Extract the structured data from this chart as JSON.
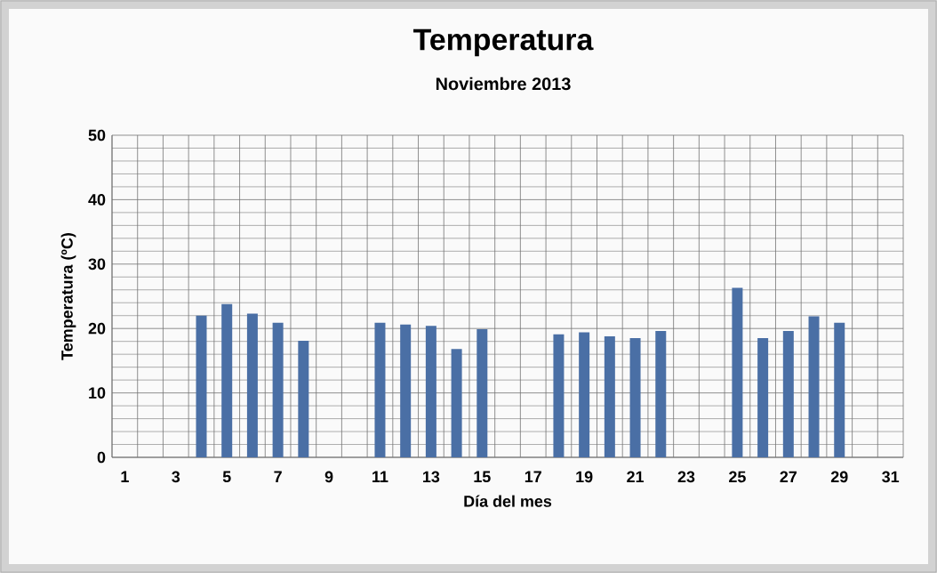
{
  "chart_data": {
    "type": "bar",
    "title": "Temperatura",
    "subtitle": "Noviembre 2013",
    "xlabel": "Día del mes",
    "ylabel": "Temperatura (ºC)",
    "categories": [
      "1",
      null,
      "3",
      null,
      "5",
      null,
      "7",
      null,
      "9",
      null,
      "11",
      null,
      "13",
      null,
      "15",
      null,
      "17",
      null,
      "19",
      null,
      "21",
      null,
      "23",
      null,
      "25",
      null,
      "27",
      null,
      "29",
      null,
      "31"
    ],
    "values": [
      null,
      null,
      null,
      22.0,
      23.8,
      22.3,
      20.9,
      18.1,
      null,
      null,
      20.9,
      20.6,
      20.4,
      16.8,
      19.9,
      null,
      null,
      19.1,
      19.4,
      18.8,
      18.5,
      19.6,
      null,
      null,
      26.3,
      18.5,
      19.6,
      21.9,
      20.9,
      null,
      null
    ],
    "color": "#4a6fa5",
    "ylim": [
      0,
      50
    ],
    "yticks": [
      0,
      10,
      20,
      30,
      40,
      50
    ],
    "grid": true
  }
}
